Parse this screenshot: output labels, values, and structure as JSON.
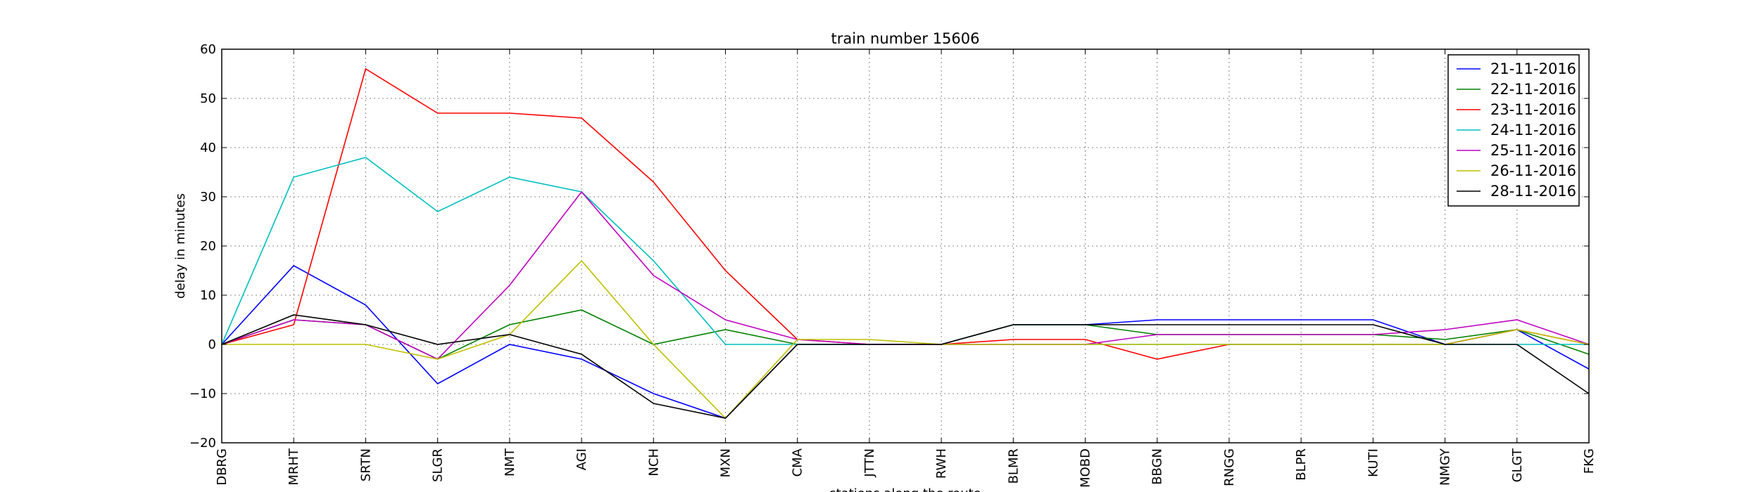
{
  "chart_data": {
    "type": "line",
    "title": "train number 15606",
    "xlabel": "stations along the route",
    "ylabel": "delay in minutes",
    "ylim": [
      -20,
      60
    ],
    "yticks": [
      -20,
      -10,
      0,
      10,
      20,
      30,
      40,
      50,
      60
    ],
    "grid": true,
    "legend_position": "top-right",
    "categories": [
      "DBRG",
      "MRHT",
      "SRTN",
      "SLGR",
      "NMT",
      "AGI",
      "NCH",
      "MXN",
      "CMA",
      "JTTN",
      "RWH",
      "BLMR",
      "MOBD",
      "BBGN",
      "RNGG",
      "BLPR",
      "KUTI",
      "NMGY",
      "GLGT",
      "FKG"
    ],
    "series": [
      {
        "name": "21-11-2016",
        "color": "#0000ff",
        "values": [
          0,
          16,
          8,
          -8,
          0,
          -3,
          -10,
          -15,
          0,
          0,
          0,
          4,
          4,
          5,
          5,
          5,
          5,
          0,
          3,
          -5
        ]
      },
      {
        "name": "22-11-2016",
        "color": "#008000",
        "values": [
          0,
          5,
          4,
          -3,
          4,
          7,
          0,
          3,
          0,
          0,
          0,
          4,
          4,
          2,
          2,
          2,
          2,
          1,
          3,
          -2
        ]
      },
      {
        "name": "23-11-2016",
        "color": "#ff0000",
        "values": [
          0,
          4,
          56,
          47,
          47,
          46,
          33,
          15,
          1,
          0,
          0,
          1,
          1,
          -3,
          0,
          0,
          0,
          0,
          3,
          0
        ]
      },
      {
        "name": "24-11-2016",
        "color": "#00bfbf",
        "values": [
          0,
          34,
          38,
          27,
          34,
          31,
          17,
          0,
          0,
          0,
          0,
          0,
          0,
          0,
          0,
          0,
          0,
          0,
          0,
          0
        ]
      },
      {
        "name": "25-11-2016",
        "color": "#bf00bf",
        "values": [
          0,
          5,
          4,
          -3,
          12,
          31,
          14,
          5,
          1,
          0,
          0,
          0,
          0,
          2,
          2,
          2,
          2,
          3,
          5,
          0
        ]
      },
      {
        "name": "26-11-2016",
        "color": "#bfbf00",
        "values": [
          0,
          0,
          0,
          -3,
          2,
          17,
          0,
          -15,
          1,
          1,
          0,
          0,
          0,
          0,
          0,
          0,
          0,
          0,
          3,
          0
        ]
      },
      {
        "name": "28-11-2016",
        "color": "#000000",
        "values": [
          0,
          6,
          4,
          0,
          2,
          -2,
          -12,
          -15,
          0,
          0,
          0,
          4,
          4,
          4,
          4,
          4,
          4,
          0,
          0,
          -10
        ]
      }
    ]
  }
}
